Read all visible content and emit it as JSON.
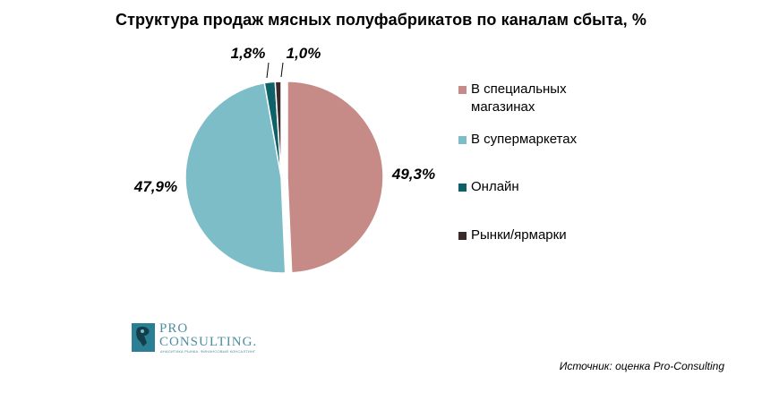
{
  "chart_data": {
    "type": "pie",
    "title": "Структура продаж мясных полуфабрикатов по каналам сбыта, %",
    "series": [
      {
        "name": "В специальных\nмагазинах",
        "value": 49.3,
        "label": "49,3%",
        "color": "#c68b86"
      },
      {
        "name": "В супермаркетах",
        "value": 47.9,
        "label": "47,9%",
        "color": "#7dbdc7"
      },
      {
        "name": "Онлайн",
        "value": 1.8,
        "label": "1,8%",
        "color": "#0e6168"
      },
      {
        "name": "Рынки/ярмарки",
        "value": 1.0,
        "label": "1,0%",
        "color": "#3a2a2a"
      }
    ],
    "legend_position": "right"
  },
  "logo": {
    "line1": "PRO",
    "line2": "CONSULTING.",
    "tagline": "АНАЛИТИКА РЫНКА. ФИНАНСОВЫЙ КОНСАЛТИНГ"
  },
  "source": "Источник: оценка Pro-Consulting"
}
